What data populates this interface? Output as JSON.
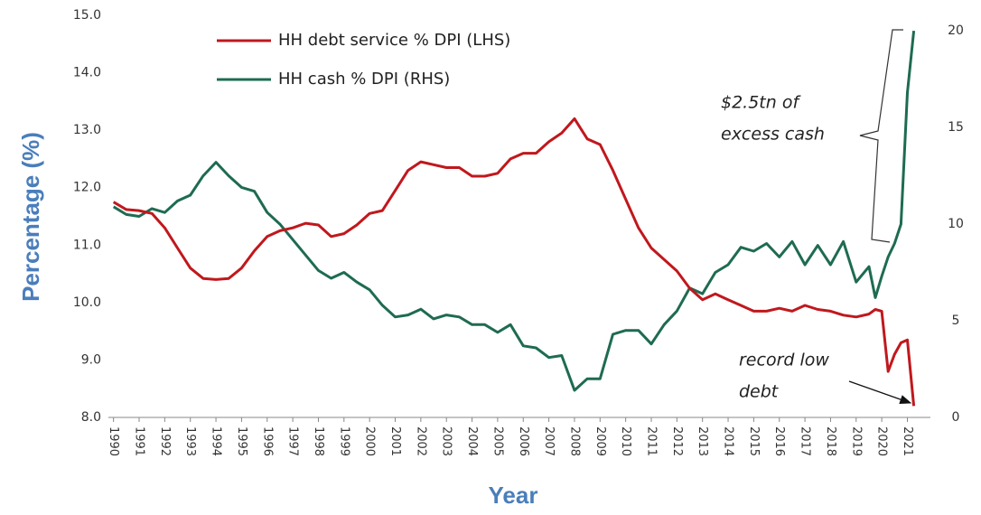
{
  "chart_data": {
    "type": "line",
    "xlabel": "Year",
    "ylabel": "Percentage (%)",
    "x": [
      1990,
      1990.5,
      1991,
      1991.5,
      1992,
      1992.5,
      1993,
      1993.5,
      1994,
      1994.5,
      1995,
      1995.5,
      1996,
      1996.5,
      1997,
      1997.5,
      1998,
      1998.5,
      1999,
      1999.5,
      2000,
      2000.5,
      2001,
      2001.5,
      2002,
      2002.5,
      2003,
      2003.5,
      2004,
      2004.5,
      2005,
      2005.5,
      2006,
      2006.5,
      2007,
      2007.5,
      2008,
      2008.5,
      2009,
      2009.5,
      2010,
      2010.5,
      2011,
      2011.5,
      2012,
      2012.5,
      2013,
      2013.5,
      2014,
      2014.5,
      2015,
      2015.5,
      2016,
      2016.5,
      2017,
      2017.5,
      2018,
      2018.5,
      2019,
      2019.5,
      2019.75,
      2020,
      2020.25,
      2020.5,
      2020.75,
      2021,
      2021.25
    ],
    "series": [
      {
        "name": "HH debt service % DPI (LHS)",
        "color": "#c0181d",
        "axis": "y",
        "values": [
          11.75,
          11.62,
          11.6,
          11.55,
          11.3,
          10.95,
          10.6,
          10.42,
          10.4,
          10.42,
          10.6,
          10.9,
          11.15,
          11.25,
          11.3,
          11.38,
          11.35,
          11.15,
          11.2,
          11.35,
          11.55,
          11.6,
          11.95,
          12.3,
          12.45,
          12.4,
          12.35,
          12.35,
          12.2,
          12.2,
          12.25,
          12.5,
          12.6,
          12.6,
          12.8,
          12.95,
          13.2,
          12.85,
          12.75,
          12.3,
          11.8,
          11.3,
          10.95,
          10.75,
          10.55,
          10.25,
          10.05,
          10.15,
          10.05,
          9.95,
          9.85,
          9.85,
          9.9,
          9.85,
          9.95,
          9.88,
          9.85,
          9.78,
          9.75,
          9.8,
          9.88,
          9.85,
          8.8,
          9.1,
          9.3,
          9.35,
          8.2
        ]
      },
      {
        "name": "HH cash % DPI (RHS)",
        "color": "#1e6b52",
        "axis": "y2",
        "values": [
          10.9,
          10.5,
          10.4,
          10.8,
          10.6,
          11.2,
          11.5,
          12.5,
          13.2,
          12.5,
          11.9,
          11.7,
          10.6,
          10.0,
          9.2,
          8.4,
          7.6,
          7.2,
          7.5,
          7.0,
          6.6,
          5.8,
          5.2,
          5.3,
          5.6,
          5.1,
          5.3,
          5.2,
          4.8,
          4.8,
          4.4,
          4.8,
          3.7,
          3.6,
          3.1,
          3.2,
          1.4,
          2.0,
          2.0,
          4.3,
          4.5,
          4.5,
          3.8,
          4.8,
          5.5,
          6.7,
          6.4,
          7.5,
          7.9,
          8.8,
          8.6,
          9.0,
          8.3,
          9.1,
          7.9,
          8.9,
          7.9,
          9.1,
          7.0,
          7.8,
          6.2,
          7.3,
          8.3,
          9.0,
          10.0,
          16.8,
          20.0
        ]
      }
    ],
    "xlim": [
      1989.8,
      2021.9
    ],
    "xticks": [
      1990,
      1991,
      1992,
      1993,
      1994,
      1995,
      1996,
      1997,
      1998,
      1999,
      2000,
      2001,
      2002,
      2003,
      2004,
      2005,
      2006,
      2007,
      2008,
      2009,
      2010,
      2011,
      2012,
      2013,
      2014,
      2015,
      2016,
      2017,
      2018,
      2019,
      2020,
      2021
    ],
    "ylim": [
      8,
      15
    ],
    "yticks": [
      {
        "value": 8,
        "label": "8.0"
      },
      {
        "value": 9,
        "label": "9.0"
      },
      {
        "value": 10,
        "label": "10.0"
      },
      {
        "value": 11,
        "label": "11.0"
      },
      {
        "value": 12,
        "label": "12.0"
      },
      {
        "value": 13,
        "label": "13.0"
      },
      {
        "value": 14,
        "label": "14.0"
      },
      {
        "value": 15,
        "label": "15.0"
      }
    ],
    "y2lim": [
      0,
      20.8
    ],
    "y2ticks": [
      0,
      5,
      10,
      15,
      20
    ],
    "annotations": [
      {
        "lines": [
          "$2.5tn of",
          "excess cash"
        ]
      },
      {
        "lines": [
          "record low",
          "debt"
        ]
      }
    ]
  }
}
